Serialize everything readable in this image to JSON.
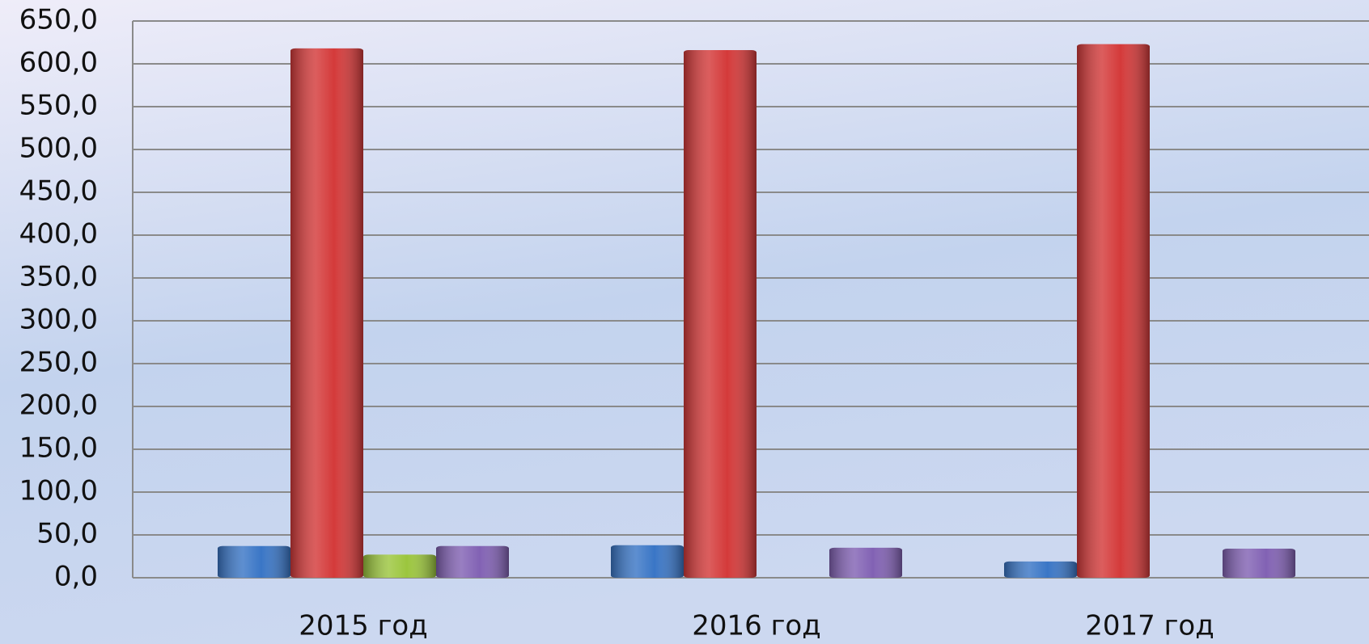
{
  "chart_data": {
    "type": "bar",
    "categories": [
      "2015 год",
      "2016 год",
      "2017 год"
    ],
    "series": [
      {
        "color": "#3a76c6",
        "values": [
          37,
          38,
          19
        ]
      },
      {
        "color": "#d43a3a",
        "values": [
          618,
          616,
          623
        ]
      },
      {
        "color": "#9cc63e",
        "values": [
          27,
          0,
          0
        ]
      },
      {
        "color": "#8262b4",
        "values": [
          37,
          35,
          34
        ]
      }
    ],
    "ylim": [
      0,
      650
    ],
    "yticks": [
      {
        "value": 0,
        "label": "0,0"
      },
      {
        "value": 50,
        "label": "50,0"
      },
      {
        "value": 100,
        "label": "100,0"
      },
      {
        "value": 150,
        "label": "150,0"
      },
      {
        "value": 200,
        "label": "200,0"
      },
      {
        "value": 250,
        "label": "250,0"
      },
      {
        "value": 300,
        "label": "300,0"
      },
      {
        "value": 350,
        "label": "350,0"
      },
      {
        "value": 400,
        "label": "400,0"
      },
      {
        "value": 450,
        "label": "450,0"
      },
      {
        "value": 500,
        "label": "500,0"
      },
      {
        "value": 550,
        "label": "550,0"
      },
      {
        "value": 600,
        "label": "600,0"
      },
      {
        "value": 650,
        "label": "650,0"
      }
    ],
    "grid": true
  }
}
